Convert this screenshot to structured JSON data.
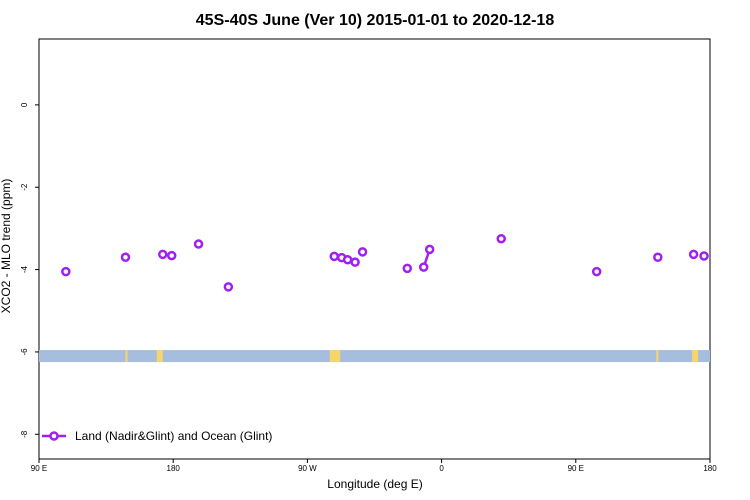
{
  "chart_data": {
    "type": "scatter",
    "title": "45S-40S June (Ver 10)   2015-01-01 to 2020-12-18",
    "xlabel": "Longitude (deg E)",
    "ylabel": "XCO2 - MLO trend (ppm)",
    "x_ticks": [
      {
        "value": 90,
        "label": "90 E"
      },
      {
        "value": 180,
        "label": "180"
      },
      {
        "value": 270,
        "label": "90 W"
      },
      {
        "value": 360,
        "label": "0"
      },
      {
        "value": 450,
        "label": "90 E"
      },
      {
        "value": 540,
        "label": "180"
      }
    ],
    "y_ticks": [
      {
        "value": 0,
        "label": "0"
      },
      {
        "value": -2,
        "label": "-2"
      },
      {
        "value": -4,
        "label": "-4"
      },
      {
        "value": -6,
        "label": "-6"
      },
      {
        "value": -8,
        "label": "-8"
      }
    ],
    "xlim": [
      90,
      540
    ],
    "ylim": [
      -8.6,
      1.6
    ],
    "legend": {
      "label": "Land (Nadir&Glint) and Ocean (Glint)",
      "position": "bottom-left"
    },
    "series": [
      {
        "name": "Land (Nadir&Glint) and Ocean (Glint)",
        "color": "#a020f0",
        "points": [
          {
            "x": 108,
            "y": -4.05
          },
          {
            "x": 148,
            "y": -3.7
          },
          {
            "x": 173,
            "y": -3.63
          },
          {
            "x": 179,
            "y": -3.66
          },
          {
            "x": 197,
            "y": -3.38
          },
          {
            "x": 217,
            "y": -4.42
          },
          {
            "x": 288,
            "y": -3.68
          },
          {
            "x": 293,
            "y": -3.71
          },
          {
            "x": 297,
            "y": -3.76
          },
          {
            "x": 302,
            "y": -3.82
          },
          {
            "x": 307,
            "y": -3.57
          },
          {
            "x": 337,
            "y": -3.97
          },
          {
            "x": 348,
            "y": -3.94
          },
          {
            "x": 352,
            "y": -3.51
          },
          {
            "x": 400,
            "y": -3.25
          },
          {
            "x": 464,
            "y": -4.05
          },
          {
            "x": 505,
            "y": -3.7
          },
          {
            "x": 529,
            "y": -3.63
          },
          {
            "x": 536,
            "y": -3.67
          }
        ],
        "connected_pairs": [
          [
            12,
            13
          ]
        ]
      }
    ],
    "band": {
      "y": -6.1,
      "ocean_color": "#a7bddd",
      "land_color": "#f7d56b",
      "land_x": [
        [
          148,
          149
        ],
        [
          169,
          173
        ],
        [
          285,
          292
        ],
        [
          504,
          505
        ],
        [
          528,
          532
        ]
      ]
    },
    "grid": false
  }
}
